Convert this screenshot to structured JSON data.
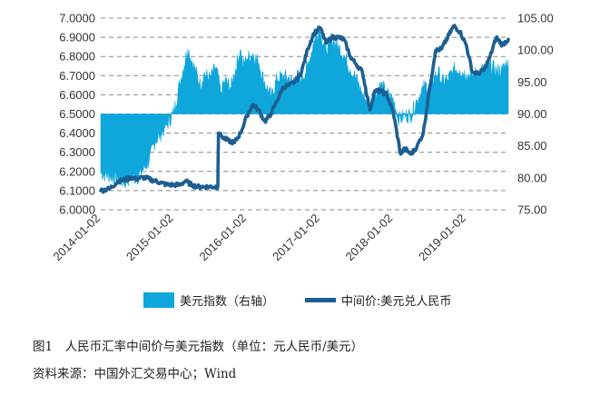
{
  "chart_data": {
    "type": "area+line",
    "baseline_right": 90.0,
    "left_axis": {
      "ticks": [
        "6.0000",
        "6.1000",
        "6.2000",
        "6.3000",
        "6.4000",
        "6.5000",
        "6.6000",
        "6.7000",
        "6.8000",
        "6.9000",
        "7.0000"
      ],
      "ylim": [
        6.0,
        7.0
      ]
    },
    "right_axis": {
      "ticks": [
        "75.00",
        "80.00",
        "85.00",
        "90.00",
        "95.00",
        "100.00",
        "105.00"
      ],
      "ylim": [
        75,
        105
      ]
    },
    "x_axis": {
      "start": "2014-01-02",
      "end": "2019-07-31",
      "ticks": [
        "2014-01-02",
        "2015-01-02",
        "2016-01-02",
        "2017-01-02",
        "2018-01-02",
        "2019-01-02"
      ]
    },
    "grid": "horizontal-dashed",
    "legend_position": "bottom",
    "series": [
      {
        "name": "美元指数（右轴）",
        "axis": "right",
        "style": "area",
        "color": "#0fa6dc",
        "points": [
          [
            "2014-01-02",
            80.8
          ],
          [
            "2014-02-15",
            80.3
          ],
          [
            "2014-04-01",
            79.8
          ],
          [
            "2014-05-08",
            79.2
          ],
          [
            "2014-06-01",
            80.4
          ],
          [
            "2014-07-01",
            79.9
          ],
          [
            "2014-08-01",
            81.3
          ],
          [
            "2014-09-01",
            82.7
          ],
          [
            "2014-10-01",
            85.8
          ],
          [
            "2014-11-01",
            87.0
          ],
          [
            "2014-12-01",
            88.4
          ],
          [
            "2015-01-02",
            90.3
          ],
          [
            "2015-02-01",
            94.8
          ],
          [
            "2015-03-13",
            100.2
          ],
          [
            "2015-04-01",
            98.4
          ],
          [
            "2015-05-15",
            94.4
          ],
          [
            "2015-06-01",
            96.3
          ],
          [
            "2015-07-01",
            95.5
          ],
          [
            "2015-08-01",
            97.3
          ],
          [
            "2015-08-24",
            93.3
          ],
          [
            "2015-09-15",
            95.2
          ],
          [
            "2015-10-15",
            94.1
          ],
          [
            "2015-11-30",
            100.1
          ],
          [
            "2015-12-15",
            97.5
          ],
          [
            "2016-01-02",
            98.7
          ],
          [
            "2016-02-01",
            99.4
          ],
          [
            "2016-03-01",
            98.0
          ],
          [
            "2016-04-01",
            94.7
          ],
          [
            "2016-05-03",
            92.6
          ],
          [
            "2016-06-01",
            95.5
          ],
          [
            "2016-07-01",
            95.8
          ],
          [
            "2016-08-01",
            95.6
          ],
          [
            "2016-08-15",
            94.9
          ],
          [
            "2016-09-01",
            96.0
          ],
          [
            "2016-10-01",
            95.5
          ],
          [
            "2016-11-01",
            97.4
          ],
          [
            "2016-12-01",
            101.2
          ],
          [
            "2016-12-28",
            103.3
          ],
          [
            "2017-01-02",
            102.8
          ],
          [
            "2017-02-01",
            100.0
          ],
          [
            "2017-03-01",
            101.7
          ],
          [
            "2017-04-01",
            100.6
          ],
          [
            "2017-05-01",
            99.2
          ],
          [
            "2017-06-01",
            97.0
          ],
          [
            "2017-07-01",
            95.5
          ],
          [
            "2017-08-01",
            93.0
          ],
          [
            "2017-09-08",
            91.4
          ],
          [
            "2017-10-01",
            93.0
          ],
          [
            "2017-11-01",
            94.6
          ],
          [
            "2017-12-01",
            93.1
          ],
          [
            "2018-01-02",
            92.2
          ],
          [
            "2018-02-01",
            89.1
          ],
          [
            "2018-03-01",
            89.8
          ],
          [
            "2018-04-01",
            89.8
          ],
          [
            "2018-05-01",
            92.2
          ],
          [
            "2018-06-01",
            94.0
          ],
          [
            "2018-07-01",
            94.6
          ],
          [
            "2018-08-15",
            96.6
          ],
          [
            "2018-09-01",
            95.0
          ],
          [
            "2018-10-01",
            95.3
          ],
          [
            "2018-11-01",
            96.9
          ],
          [
            "2018-12-01",
            96.9
          ],
          [
            "2019-01-02",
            96.2
          ],
          [
            "2019-02-01",
            96.0
          ],
          [
            "2019-03-01",
            96.5
          ],
          [
            "2019-04-01",
            97.0
          ],
          [
            "2019-05-01",
            97.6
          ],
          [
            "2019-06-01",
            96.7
          ],
          [
            "2019-07-01",
            96.8
          ],
          [
            "2019-07-31",
            98.4
          ]
        ]
      },
      {
        "name": "中间价:美元兑人民币",
        "axis": "left",
        "style": "line",
        "color": "#1d5e91",
        "points": [
          [
            "2014-01-02",
            6.1
          ],
          [
            "2014-02-15",
            6.11
          ],
          [
            "2014-04-01",
            6.15
          ],
          [
            "2014-05-15",
            6.16
          ],
          [
            "2014-06-01",
            6.17
          ],
          [
            "2014-07-01",
            6.16
          ],
          [
            "2014-08-01",
            6.17
          ],
          [
            "2014-09-01",
            6.16
          ],
          [
            "2014-10-01",
            6.15
          ],
          [
            "2014-11-01",
            6.14
          ],
          [
            "2014-12-01",
            6.13
          ],
          [
            "2015-01-02",
            6.13
          ],
          [
            "2015-02-01",
            6.13
          ],
          [
            "2015-03-01",
            6.15
          ],
          [
            "2015-04-01",
            6.13
          ],
          [
            "2015-05-01",
            6.12
          ],
          [
            "2015-06-01",
            6.12
          ],
          [
            "2015-07-01",
            6.12
          ],
          [
            "2015-08-10",
            6.12
          ],
          [
            "2015-08-11",
            6.23
          ],
          [
            "2015-08-13",
            6.4
          ],
          [
            "2015-09-01",
            6.38
          ],
          [
            "2015-10-01",
            6.36
          ],
          [
            "2015-11-01",
            6.35
          ],
          [
            "2015-12-01",
            6.4
          ],
          [
            "2016-01-02",
            6.49
          ],
          [
            "2016-02-01",
            6.55
          ],
          [
            "2016-03-01",
            6.52
          ],
          [
            "2016-04-01",
            6.46
          ],
          [
            "2016-05-01",
            6.5
          ],
          [
            "2016-06-01",
            6.57
          ],
          [
            "2016-07-01",
            6.64
          ],
          [
            "2016-08-01",
            6.65
          ],
          [
            "2016-09-01",
            6.67
          ],
          [
            "2016-10-01",
            6.72
          ],
          [
            "2016-11-01",
            6.84
          ],
          [
            "2016-12-01",
            6.92
          ],
          [
            "2017-01-02",
            6.95
          ],
          [
            "2017-02-01",
            6.87
          ],
          [
            "2017-03-01",
            6.9
          ],
          [
            "2017-04-01",
            6.9
          ],
          [
            "2017-05-01",
            6.89
          ],
          [
            "2017-06-01",
            6.8
          ],
          [
            "2017-07-01",
            6.76
          ],
          [
            "2017-08-01",
            6.72
          ],
          [
            "2017-09-08",
            6.52
          ],
          [
            "2017-10-01",
            6.62
          ],
          [
            "2017-11-01",
            6.62
          ],
          [
            "2017-12-01",
            6.6
          ],
          [
            "2018-01-02",
            6.51
          ],
          [
            "2018-02-08",
            6.29
          ],
          [
            "2018-03-01",
            6.32
          ],
          [
            "2018-04-01",
            6.29
          ],
          [
            "2018-05-01",
            6.33
          ],
          [
            "2018-06-01",
            6.4
          ],
          [
            "2018-07-01",
            6.62
          ],
          [
            "2018-08-01",
            6.83
          ],
          [
            "2018-09-01",
            6.84
          ],
          [
            "2018-10-01",
            6.9
          ],
          [
            "2018-11-01",
            6.96
          ],
          [
            "2018-12-01",
            6.93
          ],
          [
            "2019-01-02",
            6.86
          ],
          [
            "2019-02-01",
            6.72
          ],
          [
            "2019-03-01",
            6.71
          ],
          [
            "2019-04-01",
            6.73
          ],
          [
            "2019-05-01",
            6.8
          ],
          [
            "2019-06-01",
            6.9
          ],
          [
            "2019-07-01",
            6.86
          ],
          [
            "2019-07-31",
            6.89
          ]
        ]
      }
    ]
  },
  "caption": "图1　人民币汇率中间价与美元指数（单位：元人民币/美元）",
  "source": "资料来源：中国外汇交易中心；Wind",
  "legend": {
    "area_label": "美元指数（右轴）",
    "line_label": "中间价:美元兑人民币"
  },
  "colors": {
    "area": "#0fa6dc",
    "line": "#1d5e91",
    "grid": "#888888"
  }
}
